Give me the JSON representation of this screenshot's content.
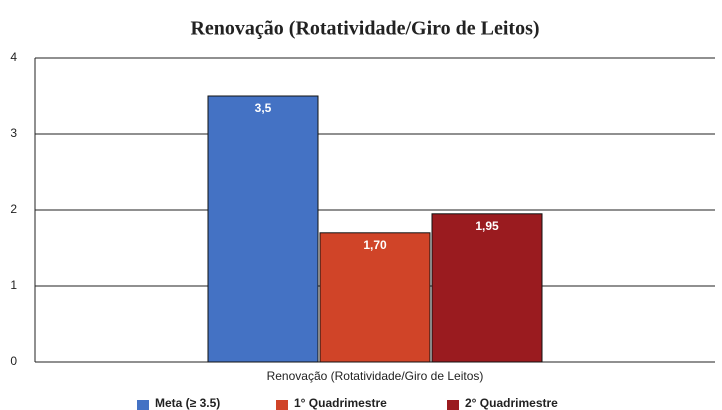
{
  "chart_data": {
    "type": "bar",
    "title": "Renovação (Rotatividade/Giro de Leitos)",
    "categories": [
      "Renovação (Rotatividade/Giro de Leitos)"
    ],
    "series": [
      {
        "name": "Meta (≥ 3.5)",
        "color": "#4472c4",
        "values": [
          3.5
        ],
        "value_labels": [
          "3,5"
        ]
      },
      {
        "name": "1° Quadrimestre",
        "color": "#d04428",
        "values": [
          1.7
        ],
        "value_labels": [
          "1,70"
        ]
      },
      {
        "name": "2° Quadrimestre",
        "color": "#9a1b1f",
        "values": [
          1.95
        ],
        "value_labels": [
          "1,95"
        ]
      }
    ],
    "ylim": [
      0,
      4
    ],
    "yticks": [
      0,
      1,
      2,
      3,
      4
    ],
    "grid": true,
    "legend": "bottom"
  }
}
